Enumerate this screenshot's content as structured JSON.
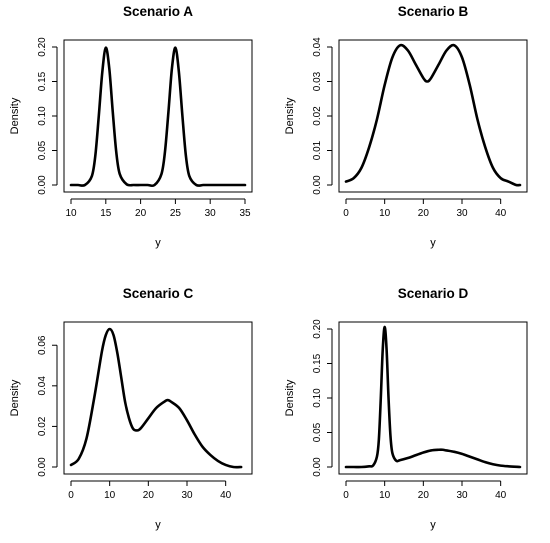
{
  "figure": {
    "line_color": "#000000",
    "panels_layout": "2x2 grid"
  },
  "chart_data": [
    {
      "type": "line",
      "title": "Scenario A",
      "xlabel": "y",
      "ylabel": "Density",
      "xlim": [
        10,
        35
      ],
      "ylim": [
        0,
        0.2
      ],
      "xticks": [
        "10",
        "15",
        "20",
        "25",
        "30",
        "35"
      ],
      "yticks": [
        "0.00",
        "0.05",
        "0.10",
        "0.15",
        "0.20"
      ],
      "x": [
        10,
        11,
        12,
        13,
        13.5,
        14,
        14.5,
        15,
        15.5,
        16,
        16.5,
        17,
        18,
        19,
        20,
        21,
        22,
        23,
        23.5,
        24,
        24.5,
        25,
        25.5,
        26,
        26.5,
        27,
        28,
        29,
        30,
        31,
        32,
        33,
        34,
        35
      ],
      "series": [
        {
          "values": [
            0.0,
            0.0,
            0.0,
            0.013,
            0.043,
            0.101,
            0.164,
            0.199,
            0.169,
            0.106,
            0.048,
            0.016,
            0.001,
            0.0,
            0.0,
            0.0,
            0.0,
            0.016,
            0.048,
            0.106,
            0.169,
            0.199,
            0.164,
            0.101,
            0.043,
            0.013,
            0.0,
            0.0,
            0.0,
            0.0,
            0.0,
            0.0,
            0.0,
            0.0
          ]
        }
      ]
    },
    {
      "type": "line",
      "title": "Scenario B",
      "xlabel": "y",
      "ylabel": "Density",
      "xlim": [
        0,
        45
      ],
      "ylim": [
        0,
        0.04
      ],
      "xticks": [
        "0",
        "10",
        "20",
        "30",
        "40"
      ],
      "yticks": [
        "0.00",
        "0.01",
        "0.02",
        "0.03",
        "0.04"
      ],
      "x": [
        0,
        2,
        4,
        6,
        8,
        10,
        12,
        14,
        16,
        18,
        20,
        21,
        22,
        24,
        26,
        28,
        30,
        32,
        34,
        36,
        38,
        40,
        42,
        44,
        45
      ],
      "series": [
        {
          "values": [
            0.001,
            0.002,
            0.005,
            0.011,
            0.019,
            0.029,
            0.037,
            0.0405,
            0.039,
            0.035,
            0.031,
            0.03,
            0.031,
            0.035,
            0.039,
            0.0405,
            0.037,
            0.029,
            0.019,
            0.011,
            0.005,
            0.002,
            0.001,
            0.0,
            0.0
          ]
        }
      ]
    },
    {
      "type": "line",
      "title": "Scenario C",
      "xlabel": "y",
      "ylabel": "Density",
      "xlim": [
        0,
        45
      ],
      "ylim": [
        0,
        0.068
      ],
      "xticks": [
        "0",
        "10",
        "20",
        "30",
        "40"
      ],
      "yticks": [
        "0.00",
        "0.02",
        "0.04",
        "0.06"
      ],
      "x": [
        0,
        2,
        4,
        6,
        8,
        9,
        10,
        11,
        12,
        13,
        14,
        15,
        16,
        17,
        18,
        20,
        22,
        24,
        25,
        26,
        28,
        30,
        32,
        34,
        36,
        38,
        40,
        42,
        44
      ],
      "series": [
        {
          "values": [
            0.001,
            0.004,
            0.014,
            0.034,
            0.057,
            0.065,
            0.068,
            0.065,
            0.056,
            0.044,
            0.032,
            0.024,
            0.019,
            0.018,
            0.019,
            0.024,
            0.029,
            0.032,
            0.033,
            0.032,
            0.029,
            0.023,
            0.016,
            0.01,
            0.006,
            0.003,
            0.001,
            0.0,
            0.0
          ]
        }
      ]
    },
    {
      "type": "line",
      "title": "Scenario D",
      "xlabel": "y",
      "ylabel": "Density",
      "xlim": [
        0,
        45
      ],
      "ylim": [
        0,
        0.2
      ],
      "xticks": [
        "0",
        "10",
        "20",
        "30",
        "40"
      ],
      "yticks": [
        "0.00",
        "0.05",
        "0.10",
        "0.15",
        "0.20"
      ],
      "x": [
        0,
        2,
        4,
        6,
        7,
        8,
        8.5,
        9,
        9.5,
        10,
        10.5,
        11,
        11.5,
        12,
        13,
        14,
        16,
        18,
        20,
        22,
        24,
        25,
        26,
        28,
        30,
        32,
        34,
        36,
        38,
        40,
        42,
        45
      ],
      "series": [
        {
          "values": [
            0.0,
            0.0,
            0.0,
            0.001,
            0.002,
            0.015,
            0.04,
            0.1,
            0.17,
            0.203,
            0.17,
            0.1,
            0.045,
            0.02,
            0.009,
            0.01,
            0.013,
            0.017,
            0.021,
            0.024,
            0.025,
            0.025,
            0.024,
            0.022,
            0.019,
            0.015,
            0.011,
            0.007,
            0.004,
            0.002,
            0.001,
            0.0
          ]
        }
      ]
    }
  ]
}
